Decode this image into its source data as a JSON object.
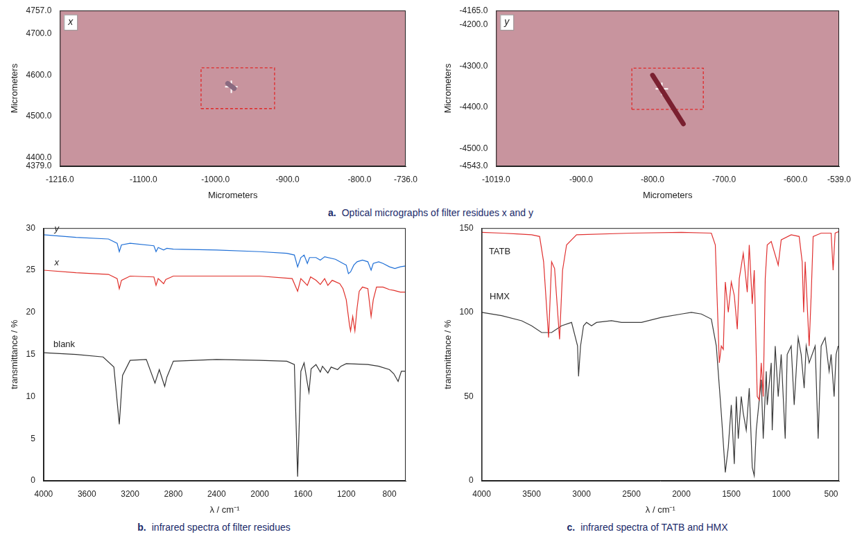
{
  "chart_data": [
    {
      "type": "micrograph",
      "panel_label": "x",
      "color": "#c8949e",
      "x_label": "Micrometers",
      "y_label": "Micrometers",
      "xlim": [
        -1216,
        -736
      ],
      "ylim": [
        4379,
        4757
      ],
      "xticks": [
        {
          "value": -1216,
          "label": "-1216.0"
        },
        {
          "value": -1100,
          "label": "-1100.0"
        },
        {
          "value": -1000,
          "label": "-1000.0"
        },
        {
          "value": -900,
          "label": "-900.0"
        },
        {
          "value": -800,
          "label": "-800.0"
        },
        {
          "value": -736,
          "label": "-736.0"
        }
      ],
      "yticks": [
        {
          "value": 4379,
          "label": "4379.0"
        },
        {
          "value": 4400,
          "label": "4400.0"
        },
        {
          "value": 4500,
          "label": "4500.0"
        },
        {
          "value": 4600,
          "label": "4600.0"
        },
        {
          "value": 4700,
          "label": "4700.0"
        },
        {
          "value": 4757,
          "label": "4757.0"
        }
      ],
      "grid": false,
      "series": [
        {
          "color": "#8a6a80",
          "line_style": "solid",
          "x": [
            -983,
            -974
          ],
          "values": [
            4580,
            4568
          ]
        },
        {
          "color": "#e02828",
          "line_style": "dashed",
          "x": [
            -1020,
            -918,
            -918,
            -1020,
            -1020
          ],
          "values": [
            4519,
            4519,
            4618,
            4618,
            4519
          ]
        },
        {
          "color": "#ffffff",
          "marker": "cross",
          "x": [
            -978
          ],
          "values": [
            4572
          ]
        }
      ]
    },
    {
      "type": "micrograph",
      "panel_label": "y",
      "color": "#c8949e",
      "x_label": "Micrometers",
      "y_label": "Micrometers",
      "xlim": [
        -1019,
        -539
      ],
      "ylim": [
        -4543,
        -4165
      ],
      "xticks": [
        {
          "value": -1019,
          "label": "-1019.0"
        },
        {
          "value": -900,
          "label": "-900.0"
        },
        {
          "value": -800,
          "label": "-800.0"
        },
        {
          "value": -700,
          "label": "-700.0"
        },
        {
          "value": -600,
          "label": "-600.0"
        },
        {
          "value": -539,
          "label": "-539.0"
        }
      ],
      "yticks": [
        {
          "value": -4543,
          "label": "-4543.0"
        },
        {
          "value": -4500,
          "label": "-4500.0"
        },
        {
          "value": -4400,
          "label": "-4400.0"
        },
        {
          "value": -4300,
          "label": "-4300.0"
        },
        {
          "value": -4200,
          "label": "-4200.0"
        },
        {
          "value": -4165,
          "label": "-4165.0"
        }
      ],
      "grid": false,
      "series": [
        {
          "color": "#7a2030",
          "line_style": "solid",
          "x": [
            -800,
            -757
          ],
          "values": [
            -4322,
            -4440
          ]
        },
        {
          "color": "#e02828",
          "line_style": "dashed",
          "x": [
            -829,
            -729,
            -729,
            -829,
            -829
          ],
          "values": [
            -4405,
            -4405,
            -4305,
            -4305,
            -4405
          ]
        },
        {
          "color": "#ffffff",
          "marker": "cross",
          "x": [
            -787
          ],
          "values": [
            -4355
          ]
        }
      ]
    },
    {
      "type": "line",
      "x_label": "λ / cm⁻¹",
      "y_label": "transmittance / %",
      "xlim": [
        4000,
        650
      ],
      "ylim": [
        0,
        30
      ],
      "xticks": [
        4000,
        3600,
        3200,
        2800,
        2400,
        2000,
        1600,
        1200,
        800
      ],
      "yticks": [
        0,
        5,
        10,
        15,
        20,
        25,
        30
      ],
      "grid": false,
      "series": [
        {
          "color": "#1f6fd6",
          "x": [
            4000,
            3700,
            3400,
            3320,
            3300,
            3280,
            3200,
            2980,
            2960,
            2940,
            2890,
            2860,
            2800,
            2400,
            2000,
            1750,
            1680,
            1650,
            1620,
            1590,
            1560,
            1540,
            1480,
            1440,
            1400,
            1300,
            1230,
            1200,
            1180,
            1160,
            1130,
            1100,
            1050,
            1000,
            970,
            950,
            900,
            860,
            800,
            750,
            700,
            650
          ],
          "values": [
            29.2,
            28.9,
            28.7,
            28.2,
            27.2,
            28.0,
            28.2,
            27.9,
            27.2,
            27.7,
            27.4,
            27.6,
            27.5,
            27.4,
            27.2,
            27.0,
            26.8,
            25.4,
            26.5,
            26.8,
            25.8,
            26.5,
            26.5,
            26.2,
            26.6,
            26.3,
            25.8,
            25.6,
            24.6,
            24.8,
            25.6,
            26.0,
            26.2,
            26.0,
            25.0,
            25.8,
            26.0,
            25.8,
            25.4,
            25.2,
            25.4,
            25.5
          ]
        },
        {
          "color": "#e0302a",
          "x": [
            4000,
            3700,
            3400,
            3320,
            3300,
            3280,
            3200,
            2980,
            2960,
            2940,
            2890,
            2870,
            2800,
            2000,
            1700,
            1650,
            1620,
            1560,
            1530,
            1480,
            1440,
            1400,
            1370,
            1330,
            1260,
            1230,
            1200,
            1170,
            1160,
            1140,
            1120,
            1100,
            1080,
            1050,
            1000,
            970,
            950,
            920,
            860,
            800,
            760,
            700,
            650
          ],
          "values": [
            25.0,
            24.7,
            24.5,
            24.0,
            22.8,
            23.8,
            24.3,
            24.2,
            23.2,
            24.0,
            23.4,
            23.9,
            24.3,
            24.3,
            24.0,
            22.5,
            24.0,
            23.2,
            24.2,
            23.8,
            23.3,
            24.0,
            23.2,
            23.8,
            23.4,
            22.8,
            21.5,
            18.5,
            17.8,
            19.5,
            17.8,
            20.5,
            22.5,
            23.0,
            22.8,
            19.5,
            21.5,
            23.0,
            23.0,
            22.7,
            22.6,
            22.4,
            22.4
          ]
        },
        {
          "color": "#333333",
          "x": [
            4000,
            3700,
            3450,
            3350,
            3300,
            3270,
            3200,
            3050,
            2970,
            2930,
            2880,
            2860,
            2800,
            2400,
            2000,
            1750,
            1680,
            1650,
            1620,
            1590,
            1560,
            1545,
            1525,
            1480,
            1440,
            1420,
            1370,
            1340,
            1280,
            1250,
            1200,
            1000,
            900,
            800,
            760,
            720,
            690,
            650
          ],
          "values": [
            15.2,
            15.0,
            14.7,
            13.5,
            6.7,
            12.5,
            14.3,
            14.4,
            11.6,
            13.2,
            11.2,
            12.3,
            14.2,
            14.4,
            14.3,
            14.2,
            13.8,
            0.5,
            13.0,
            14.0,
            11.6,
            10.5,
            13.3,
            13.8,
            12.9,
            13.6,
            12.8,
            13.5,
            13.2,
            13.6,
            13.9,
            13.8,
            13.6,
            13.2,
            12.7,
            11.8,
            13.0,
            13.0
          ]
        }
      ],
      "annotations": [
        {
          "text": "y",
          "x": 3880,
          "y": 29.9
        },
        {
          "text": "x",
          "x": 3880,
          "y": 25.9
        },
        {
          "text": "blank",
          "x": 3810,
          "y": 16.2
        }
      ]
    },
    {
      "type": "line",
      "x_label": "λ / cm⁻¹",
      "y_label": "transmittance / %",
      "xlim": [
        4000,
        420
      ],
      "ylim": [
        0,
        150
      ],
      "xticks": [
        4000,
        3500,
        3000,
        2500,
        2000,
        1500,
        1000,
        500
      ],
      "yticks": [
        0,
        50,
        100,
        150
      ],
      "grid": false,
      "series": [
        {
          "color": "#e03030",
          "x": [
            4000,
            3800,
            3650,
            3500,
            3420,
            3380,
            3330,
            3300,
            3270,
            3220,
            3190,
            3150,
            3050,
            2500,
            2000,
            1700,
            1660,
            1620,
            1600,
            1580,
            1560,
            1530,
            1500,
            1470,
            1440,
            1420,
            1380,
            1340,
            1320,
            1290,
            1270,
            1240,
            1220,
            1200,
            1180,
            1160,
            1140,
            1100,
            1030,
            1000,
            900,
            820,
            790,
            775,
            760,
            720,
            700,
            680,
            600,
            500,
            480,
            460,
            420
          ],
          "values": [
            147.5,
            147,
            146.5,
            146,
            145,
            130,
            85,
            130,
            126,
            84,
            125,
            140,
            146,
            147,
            147.5,
            147,
            140,
            70,
            80,
            78,
            118,
            100,
            118,
            110,
            90,
            120,
            135,
            112,
            140,
            105,
            125,
            50,
            48,
            70,
            50,
            120,
            140,
            142,
            128,
            143,
            146,
            145,
            130,
            100,
            130,
            80,
            110,
            145,
            147,
            147,
            125,
            147,
            148
          ]
        },
        {
          "color": "#3a3a3a",
          "x": [
            4000,
            3800,
            3600,
            3500,
            3400,
            3300,
            3200,
            3100,
            3040,
            3030,
            3010,
            2980,
            2950,
            2900,
            2850,
            2700,
            2600,
            2400,
            2200,
            2000,
            1900,
            1800,
            1700,
            1650,
            1600,
            1560,
            1530,
            1500,
            1470,
            1450,
            1430,
            1400,
            1380,
            1350,
            1320,
            1290,
            1270,
            1250,
            1200,
            1180,
            1150,
            1140,
            1100,
            1090,
            1060,
            1030,
            1000,
            960,
            940,
            900,
            870,
            830,
            800,
            770,
            750,
            720,
            660,
            630,
            600,
            560,
            520,
            500,
            470,
            450,
            430
          ],
          "values": [
            100,
            98,
            95,
            92,
            88,
            88,
            92,
            94,
            80,
            62,
            80,
            92,
            94,
            92,
            94,
            95,
            94,
            94,
            97,
            99,
            100,
            99,
            96,
            80,
            40,
            5,
            20,
            45,
            10,
            50,
            25,
            50,
            40,
            30,
            55,
            8,
            3,
            30,
            60,
            25,
            65,
            45,
            70,
            30,
            80,
            50,
            75,
            25,
            75,
            80,
            45,
            85,
            75,
            55,
            80,
            70,
            80,
            25,
            80,
            85,
            65,
            75,
            50,
            75,
            80
          ]
        }
      ],
      "annotations": [
        {
          "text": "TATB",
          "x": 3820,
          "y": 136
        },
        {
          "text": "HMX",
          "x": 3820,
          "y": 109
        }
      ]
    }
  ],
  "captions": [
    {
      "letter": "a.",
      "text": "Optical micrographs of filter residues x and y"
    },
    {
      "letter": "b.",
      "text": "infrared spectra of filter residues"
    },
    {
      "letter": "c.",
      "text": "infrared spectra of TATB and HMX"
    }
  ]
}
